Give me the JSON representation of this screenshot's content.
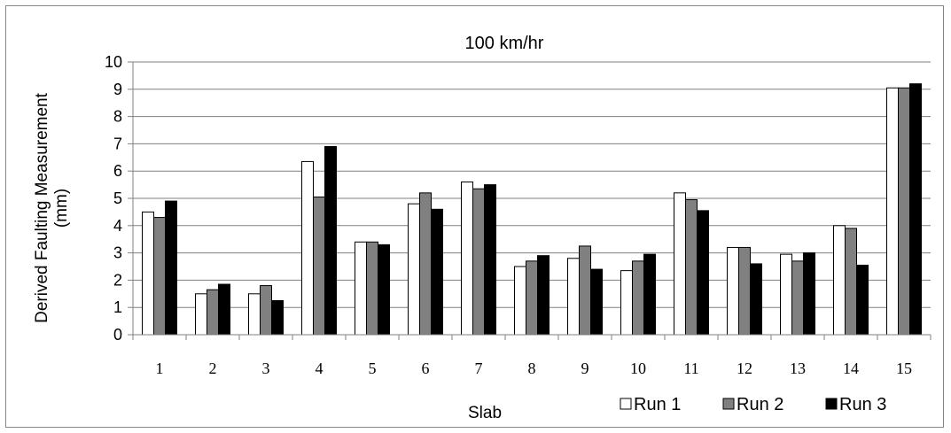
{
  "chart_data": {
    "type": "bar",
    "title": "100 km/hr",
    "xlabel": "Slab",
    "ylabel": "Derived Faulting Measurement (mm)",
    "ylabel_lines": [
      "Derived Faulting Measurement",
      "(mm)"
    ],
    "ylim": [
      0,
      10
    ],
    "yticks": [
      0,
      1,
      2,
      3,
      4,
      5,
      6,
      7,
      8,
      9,
      10
    ],
    "grid": true,
    "legend_position": "bottom-right",
    "categories": [
      "1",
      "2",
      "3",
      "4",
      "5",
      "6",
      "7",
      "8",
      "9",
      "10",
      "11",
      "12",
      "13",
      "14",
      "15"
    ],
    "series": [
      {
        "name": "Run 1",
        "color": "#ffffff",
        "values": [
          4.5,
          1.5,
          1.5,
          6.35,
          3.4,
          4.8,
          5.6,
          2.5,
          2.8,
          2.35,
          5.2,
          3.2,
          2.95,
          4.0,
          9.05
        ]
      },
      {
        "name": "Run 2",
        "color": "#808080",
        "values": [
          4.3,
          1.65,
          1.8,
          5.05,
          3.4,
          5.2,
          5.35,
          2.7,
          3.25,
          2.7,
          4.95,
          3.2,
          2.7,
          3.9,
          9.05
        ]
      },
      {
        "name": "Run 3",
        "color": "#000000",
        "values": [
          4.9,
          1.85,
          1.25,
          6.9,
          3.3,
          4.6,
          5.5,
          2.9,
          2.4,
          2.95,
          4.55,
          2.6,
          3.0,
          2.55,
          9.2
        ]
      }
    ]
  }
}
